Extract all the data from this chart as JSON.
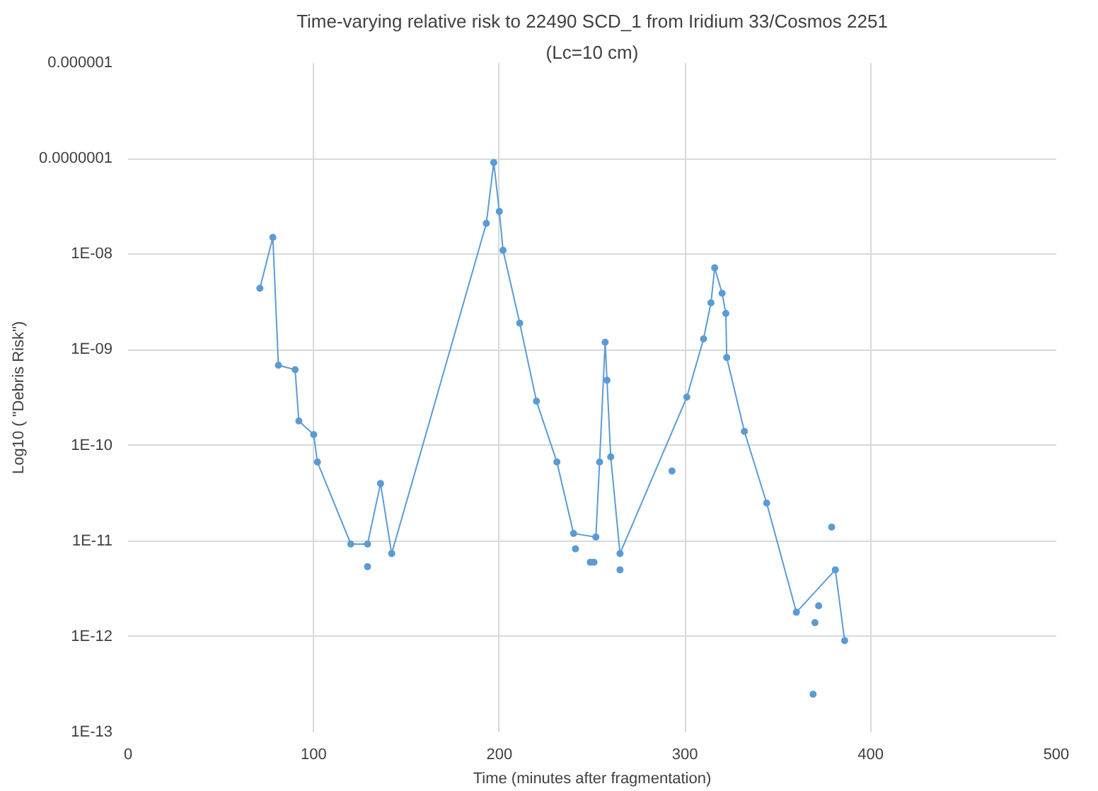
{
  "chart_data": {
    "type": "line",
    "title": "Time-varying relative risk to 22490 SCD_1 from Iridium 33/Cosmos 2251",
    "subtitle": "(Lc=10 cm)",
    "xlabel": "Time (minutes after fragmentation)",
    "ylabel": "Log10 ( \"Debris Risk\")",
    "log": "y",
    "grid": true,
    "marker": "circle",
    "line_style": "solid",
    "xlim": [
      0,
      500
    ],
    "xticks": [
      0,
      100,
      200,
      300,
      400,
      500
    ],
    "ylim": [
      1e-13,
      1e-06
    ],
    "yticks": [
      {
        "value": 1e-06,
        "label": "0.000001"
      },
      {
        "value": 1e-07,
        "label": "0.0000001"
      },
      {
        "value": 1e-08,
        "label": "1E-08"
      },
      {
        "value": 1e-09,
        "label": "1E-09"
      },
      {
        "value": 1e-10,
        "label": "1E-10"
      },
      {
        "value": 1e-11,
        "label": "1E-11"
      },
      {
        "value": 1e-12,
        "label": "1E-12"
      },
      {
        "value": 1e-13,
        "label": "1E-13"
      }
    ],
    "series": [
      {
        "color": "#5b9bd5",
        "x": [
          71,
          78,
          81,
          90,
          92,
          100,
          102,
          120,
          129,
          136,
          142,
          193,
          197,
          200,
          202,
          211,
          220,
          231,
          240,
          252,
          254,
          257,
          258,
          260,
          265,
          301,
          310,
          314,
          316,
          320,
          322,
          322.5,
          332,
          344,
          360,
          381,
          386
        ],
        "values": [
          4.4e-09,
          1.5e-08,
          6.9e-10,
          6.2e-10,
          1.8e-10,
          1.3e-10,
          6.7e-11,
          9.3e-12,
          9.3e-12,
          4e-11,
          7.4e-12,
          2.1e-08,
          9.1e-08,
          2.8e-08,
          1.1e-08,
          1.9e-09,
          2.9e-10,
          6.7e-11,
          1.2e-11,
          1.1e-11,
          6.7e-11,
          1.2e-09,
          4.8e-10,
          7.6e-11,
          7.4e-12,
          3.2e-10,
          1.3e-09,
          3.1e-09,
          7.2e-09,
          3.9e-09,
          2.4e-09,
          8.3e-10,
          1.4e-10,
          2.5e-11,
          1.8e-12,
          5e-12,
          9.1e-13
        ]
      },
      {
        "type": "scatter",
        "color": "#5b9bd5",
        "x": [
          129,
          241,
          249,
          251,
          265,
          293,
          369,
          370,
          372,
          379
        ],
        "values": [
          5.4e-12,
          8.3e-12,
          6e-12,
          6e-12,
          5e-12,
          5.4e-11,
          2.5e-13,
          1.4e-12,
          2.1e-12,
          1.4e-11
        ]
      }
    ]
  }
}
